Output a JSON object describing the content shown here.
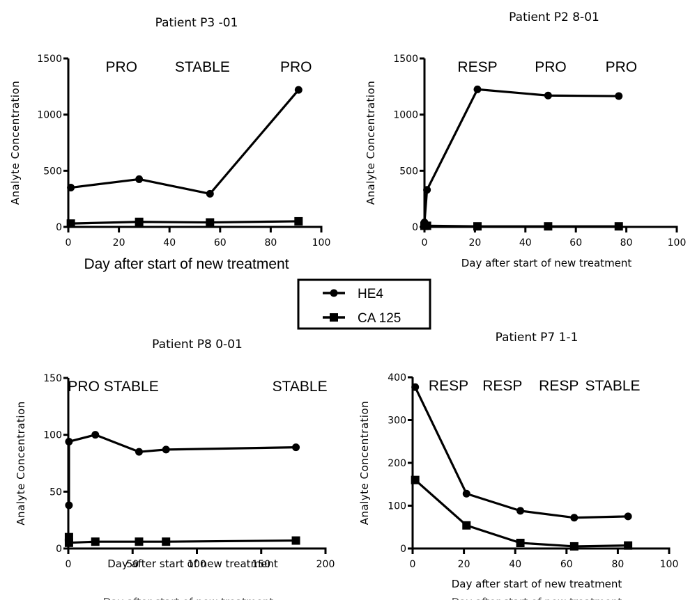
{
  "legend": {
    "items": [
      {
        "label": "HE4",
        "marker": "circle"
      },
      {
        "label": "CA 125",
        "marker": "square"
      }
    ]
  },
  "chart_data": [
    {
      "type": "line",
      "title": "Patient P3 -01",
      "xlabel": "Day after start of new treatment",
      "ylabel": "Analyte Concentration",
      "xlim": [
        0,
        100
      ],
      "ylim": [
        0,
        1500
      ],
      "xticks": [
        0,
        20,
        40,
        60,
        80,
        100
      ],
      "yticks": [
        0,
        500,
        1000,
        1500
      ],
      "grid": false,
      "annotations": [
        {
          "text": "PRO",
          "x": 21
        },
        {
          "text": "STABLE",
          "x": 53
        },
        {
          "text": "PRO",
          "x": 90
        }
      ],
      "series": [
        {
          "name": "HE4",
          "marker": "circle",
          "x": [
            1,
            28,
            56,
            91
          ],
          "y": [
            350,
            425,
            295,
            1220
          ]
        },
        {
          "name": "CA 125",
          "marker": "square",
          "x": [
            1,
            28,
            56,
            91
          ],
          "y": [
            30,
            45,
            40,
            50
          ]
        }
      ]
    },
    {
      "type": "line",
      "title": "Patient P2 8-01",
      "xlabel": "Day after start of new treatment",
      "ylabel": "Analyte Concentration",
      "xlim": [
        0,
        100
      ],
      "ylim": [
        0,
        1500
      ],
      "xticks": [
        0,
        20,
        40,
        60,
        80,
        100
      ],
      "yticks": [
        0,
        500,
        1000,
        1500
      ],
      "grid": false,
      "annotations": [
        {
          "text": "RESP",
          "x": 21
        },
        {
          "text": "PRO",
          "x": 50
        },
        {
          "text": "PRO",
          "x": 78
        }
      ],
      "series": [
        {
          "name": "HE4",
          "marker": "circle",
          "x": [
            0,
            1,
            21,
            49,
            77
          ],
          "y": [
            40,
            330,
            1225,
            1170,
            1165
          ]
        },
        {
          "name": "CA 125",
          "marker": "square",
          "x": [
            0,
            1,
            21,
            49,
            77
          ],
          "y": [
            10,
            10,
            5,
            5,
            5
          ]
        }
      ]
    },
    {
      "type": "line",
      "title": "Patient P8 0-01",
      "xlabel": "Day after start of new treatment",
      "ylabel": "Analyte Concentration",
      "xlim": [
        0,
        200
      ],
      "ylim": [
        0,
        150
      ],
      "xticks": [
        0,
        50,
        100,
        150,
        200
      ],
      "yticks": [
        0,
        50,
        100,
        150
      ],
      "grid": false,
      "annotations": [
        {
          "text": "PRO STABLE",
          "x": 35
        },
        {
          "text": "STABLE",
          "x": 180
        }
      ],
      "series": [
        {
          "name": "HE4",
          "marker": "circle",
          "x": [
            0.5,
            0.5,
            21,
            55,
            76,
            177
          ],
          "y": [
            38,
            94,
            100,
            85,
            87,
            89
          ]
        },
        {
          "name": "CA 125",
          "marker": "square",
          "x": [
            0.5,
            0.5,
            21,
            55,
            76,
            177
          ],
          "y": [
            10,
            5,
            6,
            6,
            6,
            7
          ]
        }
      ]
    },
    {
      "type": "line",
      "title": "Patient P7 1-1",
      "xlabel": "Day after start of new treatment",
      "ylabel": "Analyte Concentration",
      "xlim": [
        0,
        100
      ],
      "ylim": [
        0,
        400
      ],
      "xticks": [
        0,
        20,
        40,
        60,
        80,
        100
      ],
      "yticks": [
        0,
        100,
        200,
        300,
        400
      ],
      "grid": false,
      "annotations": [
        {
          "text": "RESP",
          "x": 14
        },
        {
          "text": "RESP",
          "x": 35
        },
        {
          "text": "RESP",
          "x": 57
        },
        {
          "text": "STABLE",
          "x": 78
        }
      ],
      "series": [
        {
          "name": "HE4",
          "marker": "circle",
          "x": [
            1,
            21,
            42,
            63,
            84
          ],
          "y": [
            377,
            128,
            88,
            72,
            75
          ]
        },
        {
          "name": "CA 125",
          "marker": "square",
          "x": [
            1,
            21,
            42,
            63,
            84
          ],
          "y": [
            160,
            54,
            13,
            5,
            7
          ]
        }
      ]
    }
  ]
}
